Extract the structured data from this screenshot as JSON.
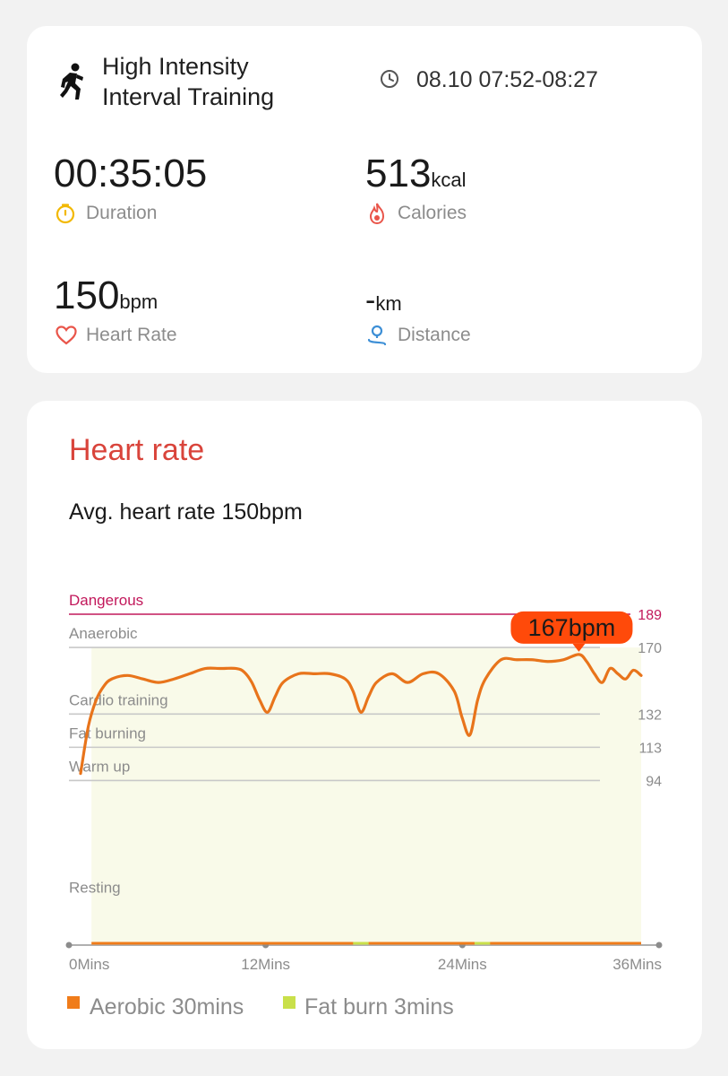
{
  "workout": {
    "title_line1": "High Intensity",
    "title_line2": "Interval Training",
    "time_range": "08.10 07:52-08:27"
  },
  "metrics": {
    "duration": {
      "value": "00:35:05",
      "label": "Duration"
    },
    "calories": {
      "value": "513",
      "unit": "kcal",
      "label": "Calories"
    },
    "heart_rate": {
      "value": "150",
      "unit": "bpm",
      "label": "Heart Rate"
    },
    "distance": {
      "value": "-",
      "unit": "km",
      "label": "Distance"
    }
  },
  "heart_card": {
    "title": "Heart rate",
    "avg_text": "Avg. heart rate 150bpm"
  },
  "colors": {
    "accent_red": "#d9443b",
    "line_orange": "#e8741b",
    "zone_fill": "#f9fae9",
    "dangerous": "#c2185b",
    "callout": "#ff4a0a",
    "fat_burn": "#c9e04a"
  },
  "chart_data": {
    "type": "line",
    "xlabel": "",
    "ylabel": "",
    "x_tick_labels": [
      "0Mins",
      "12Mins",
      "24Mins",
      "36Mins"
    ],
    "xlim": [
      0,
      36
    ],
    "ylim": [
      0,
      189
    ],
    "zones": [
      {
        "name": "Dangerous",
        "threshold": 189,
        "threshold_label": "189"
      },
      {
        "name": "Anaerobic",
        "threshold": 170,
        "threshold_label": "170"
      },
      {
        "name": "Cardio training",
        "threshold": 132,
        "threshold_label": "132"
      },
      {
        "name": "Fat burning",
        "threshold": 113,
        "threshold_label": "113"
      },
      {
        "name": "Warm up",
        "threshold": 94,
        "threshold_label": "94"
      },
      {
        "name": "Resting",
        "threshold": 0,
        "threshold_label": ""
      }
    ],
    "series": [
      {
        "x": [
          0,
          0.5,
          1,
          1.5,
          2,
          3,
          4,
          5,
          6,
          7,
          8,
          9,
          10,
          10.5,
          11,
          11.5,
          12,
          12.5,
          13,
          14,
          15,
          16,
          17,
          17.5,
          18,
          18.5,
          19,
          20,
          21,
          22,
          23,
          24,
          24.5,
          25,
          25.5,
          26,
          27,
          28,
          29,
          30,
          31,
          32,
          32.5,
          33,
          33.5,
          34,
          34.5,
          35,
          35.5,
          36
        ],
        "values": [
          98,
          125,
          140,
          148,
          152,
          154,
          152,
          150,
          152,
          155,
          158,
          158,
          158,
          156,
          150,
          140,
          133,
          142,
          150,
          155,
          155,
          155,
          152,
          145,
          133,
          142,
          150,
          155,
          150,
          155,
          155,
          145,
          130,
          120,
          140,
          152,
          163,
          163,
          163,
          162,
          163,
          166,
          162,
          155,
          150,
          158,
          155,
          152,
          157,
          154
        ]
      }
    ],
    "peak_label": "167bpm",
    "legend": [
      {
        "name": "Aerobic 30mins",
        "color": "#f07c1a"
      },
      {
        "name": "Fat burn 3mins",
        "color": "#c9e04a"
      }
    ]
  }
}
